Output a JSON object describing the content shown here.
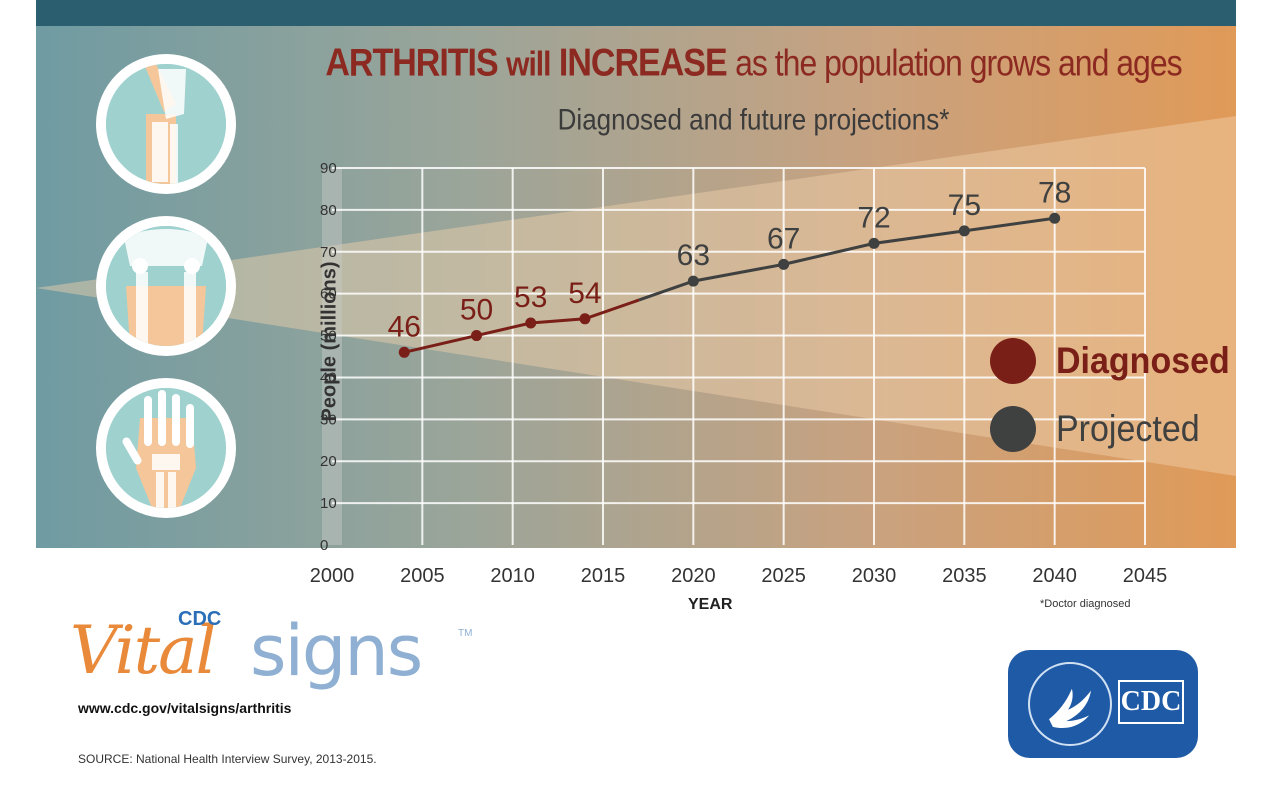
{
  "header": {
    "title_part1": "ARTHRITIS",
    "title_part2": "will",
    "title_part3": "INCREASE",
    "title_part4": "as the population grows and ages",
    "subtitle": "Diagnosed and future projections*"
  },
  "chart_data": {
    "type": "line",
    "title": "ARTHRITIS will INCREASE as the population grows and ages",
    "subtitle": "Diagnosed and future projections*",
    "xlabel": "YEAR",
    "ylabel": "People (millions)",
    "xlim": [
      2000,
      2045
    ],
    "ylim": [
      0,
      90
    ],
    "x_ticks": [
      2000,
      2005,
      2010,
      2015,
      2020,
      2025,
      2030,
      2035,
      2040,
      2045
    ],
    "y_ticks": [
      0,
      10,
      20,
      30,
      40,
      50,
      60,
      70,
      80,
      90
    ],
    "grid": true,
    "legend_position": "right",
    "series": [
      {
        "name": "Diagnosed",
        "color": "#7a1f17",
        "x": [
          2004,
          2008,
          2011,
          2014
        ],
        "values": [
          46,
          50,
          53,
          54
        ]
      },
      {
        "name": "Projected",
        "color": "#3f4040",
        "x": [
          2020,
          2025,
          2030,
          2035,
          2040
        ],
        "values": [
          63,
          67,
          72,
          75,
          78
        ]
      }
    ],
    "footnote": "*Doctor diagnosed"
  },
  "legend": {
    "diagnosed": "Diagnosed",
    "projected": "Projected"
  },
  "branding": {
    "cdc_small": "CDC",
    "vital": "Vital",
    "signs": "signs",
    "tm": "TM",
    "url": "www.cdc.gov/vitalsigns/arthritis",
    "source": "SOURCE: National Health Interview Survey, 2013-2015.",
    "badge_text": "CDC"
  },
  "icons": [
    "knee-joint-icon",
    "hip-joint-icon",
    "hand-joint-icon",
    "hhs-eagle-seal-icon"
  ]
}
